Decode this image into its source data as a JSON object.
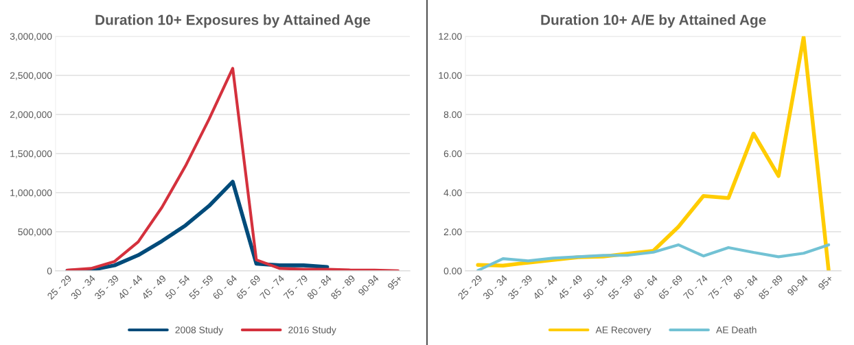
{
  "chart_data": [
    {
      "type": "line",
      "title": "Duration 10+ Exposures by Attained Age",
      "categories": [
        "25 - 29",
        "30 - 34",
        "35 - 39",
        "40 - 44",
        "45 - 49",
        "50 - 54",
        "55 - 59",
        "60 - 64",
        "65 - 69",
        "70 - 74",
        "75 - 79",
        "80 - 84",
        "85 - 89",
        "90-94",
        "95+"
      ],
      "series": [
        {
          "name": "2008 Study",
          "color": "#004b7a",
          "values": [
            0,
            10000,
            70000,
            200000,
            380000,
            580000,
            830000,
            1140000,
            90000,
            70000,
            70000,
            50000,
            null,
            null,
            null
          ]
        },
        {
          "name": "2016 Study",
          "color": "#d4313d",
          "values": [
            10000,
            30000,
            120000,
            370000,
            810000,
            1340000,
            1940000,
            2590000,
            140000,
            30000,
            20000,
            20000,
            10000,
            10000,
            0
          ]
        }
      ],
      "ylim": [
        0,
        3000000
      ],
      "yticks": [
        {
          "value": 0,
          "label": "0"
        },
        {
          "value": 500000,
          "label": "500,000"
        },
        {
          "value": 1000000,
          "label": "1,000,000"
        },
        {
          "value": 1500000,
          "label": "1,500,000"
        },
        {
          "value": 2000000,
          "label": "2,000,000"
        },
        {
          "value": 2500000,
          "label": "2,500,000"
        },
        {
          "value": 3000000,
          "label": "3,000,000"
        }
      ],
      "grid": "y",
      "legend": "bottom",
      "marker": "none",
      "line_style": "solid"
    },
    {
      "type": "line",
      "title": "Duration 10+ A/E by Attained Age",
      "categories": [
        "25 - 29",
        "30 - 34",
        "35 - 39",
        "40 - 44",
        "45 - 49",
        "50 - 54",
        "55 - 59",
        "60 - 64",
        "65 - 69",
        "70 - 74",
        "75 - 79",
        "80 - 84",
        "85 - 89",
        "90-94",
        "95+"
      ],
      "series": [
        {
          "name": "AE Recovery",
          "color": "#ffcc00",
          "values": [
            0.3,
            0.27,
            0.42,
            0.56,
            0.7,
            0.73,
            0.88,
            1.02,
            2.25,
            3.83,
            3.72,
            7.02,
            4.85,
            11.95,
            0
          ]
        },
        {
          "name": "AE Death",
          "color": "#72c2d4",
          "values": [
            0.02,
            0.62,
            0.51,
            0.65,
            0.72,
            0.79,
            0.8,
            0.95,
            1.33,
            0.76,
            1.19,
            0.94,
            0.72,
            0.9,
            1.33
          ]
        }
      ],
      "ylim": [
        0,
        12
      ],
      "yticks": [
        {
          "value": 0,
          "label": "0.00"
        },
        {
          "value": 2,
          "label": "2.00"
        },
        {
          "value": 4,
          "label": "4.00"
        },
        {
          "value": 6,
          "label": "6.00"
        },
        {
          "value": 8,
          "label": "8.00"
        },
        {
          "value": 10,
          "label": "10.00"
        },
        {
          "value": 12,
          "label": "12.00"
        }
      ],
      "grid": "y",
      "legend": "bottom",
      "marker": "none",
      "line_style": "solid"
    }
  ]
}
